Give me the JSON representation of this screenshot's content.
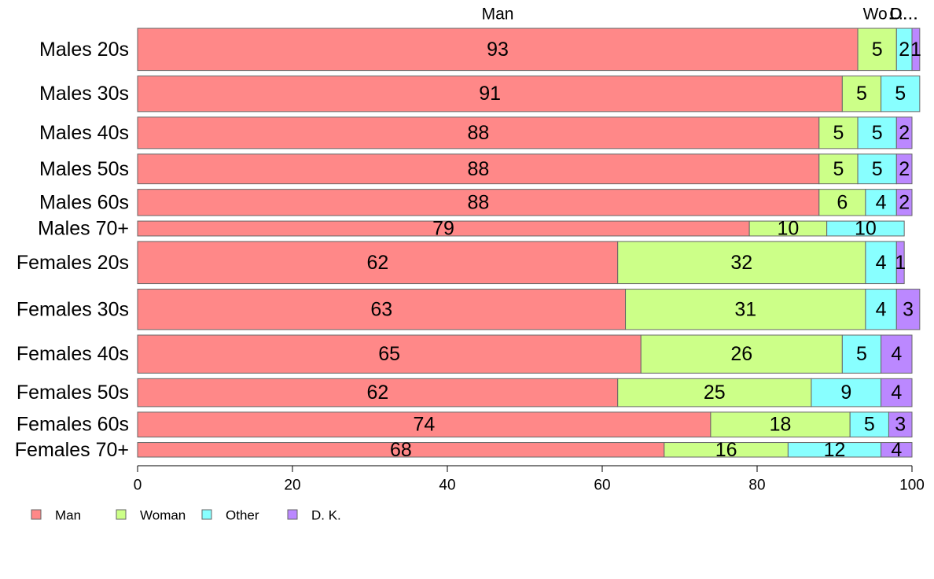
{
  "chart_data": {
    "type": "bar",
    "orientation": "horizontal",
    "stacked": true,
    "categories": [
      "Males 20s",
      "Males 30s",
      "Males 40s",
      "Males 50s",
      "Males 60s",
      "Males 70+",
      "Females 20s",
      "Females 30s",
      "Females 40s",
      "Females 50s",
      "Females 60s",
      "Females 70+"
    ],
    "series": [
      {
        "name": "Man",
        "color": "#FF8888",
        "values": [
          93,
          91,
          88,
          88,
          88,
          79,
          62,
          63,
          65,
          62,
          74,
          68
        ]
      },
      {
        "name": "Woman",
        "color": "#CCFF88",
        "values": [
          5,
          5,
          5,
          5,
          6,
          10,
          32,
          31,
          26,
          25,
          18,
          16
        ]
      },
      {
        "name": "Other",
        "color": "#88FFFF",
        "values": [
          2,
          5,
          5,
          5,
          4,
          10,
          4,
          4,
          5,
          9,
          5,
          12
        ]
      },
      {
        "name": "D. K.",
        "color": "#BB88FF",
        "values": [
          1,
          0,
          2,
          2,
          2,
          0,
          1,
          3,
          4,
          4,
          3,
          4
        ]
      }
    ],
    "top_labels": [
      "Man",
      "Wo…",
      "O…",
      "D…"
    ],
    "xlim": [
      0,
      100
    ],
    "xticks": [
      0,
      20,
      40,
      60,
      80,
      100
    ],
    "row_weights": [
      1.22,
      1.03,
      0.91,
      0.86,
      0.76,
      0.43,
      1.22,
      1.17,
      1.1,
      0.81,
      0.72,
      0.42
    ],
    "legend_position": "bottom-left",
    "grid": false,
    "title": "",
    "xlabel": "",
    "ylabel": ""
  }
}
